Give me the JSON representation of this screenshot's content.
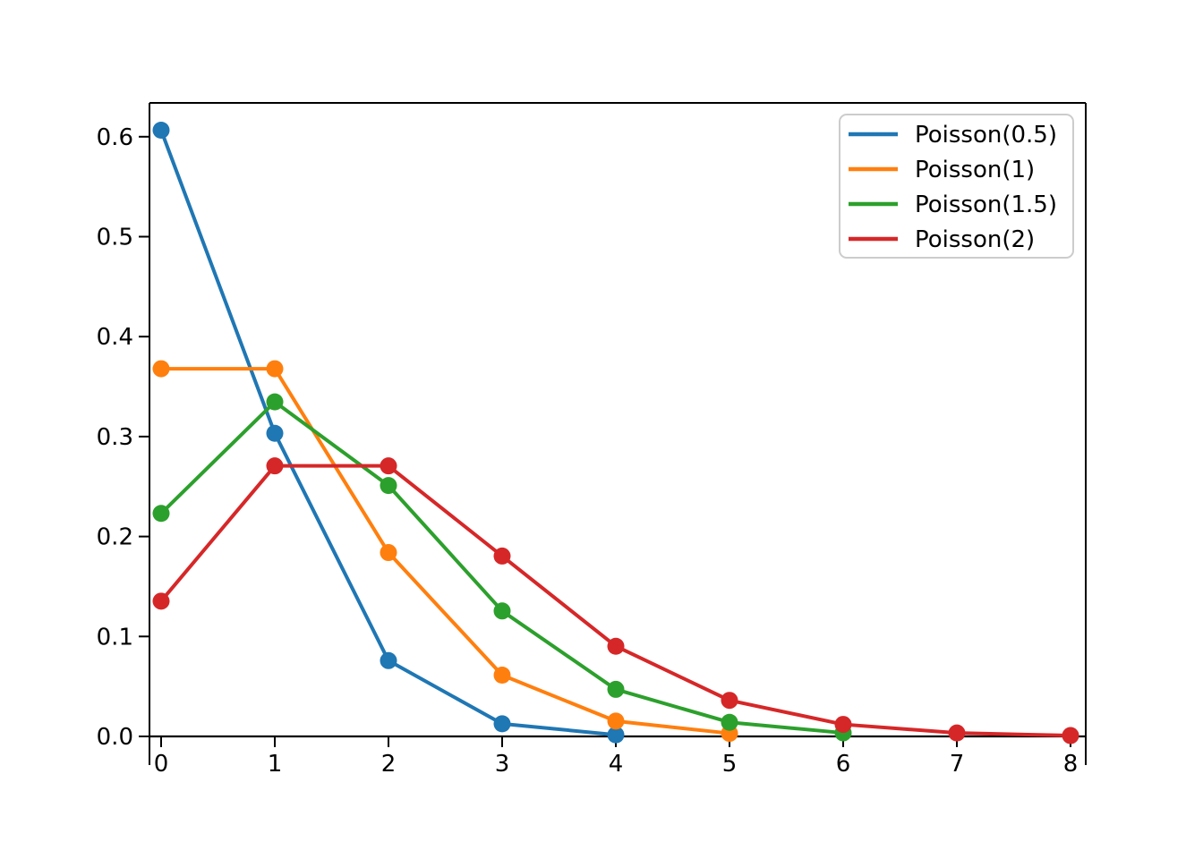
{
  "chart_data": {
    "type": "line",
    "title": "",
    "xlabel": "",
    "ylabel": "",
    "grid": false,
    "marker": "o",
    "legend_position": "upper right",
    "xlim": [
      -0.1,
      8.13
    ],
    "ylim": [
      -0.029,
      0.634
    ],
    "x_ticks": [
      "0",
      "1",
      "2",
      "3",
      "4",
      "5",
      "6",
      "7",
      "8"
    ],
    "y_ticks": [
      "0.0",
      "0.1",
      "0.2",
      "0.3",
      "0.4",
      "0.5",
      "0.6"
    ],
    "series": [
      {
        "name": "Poisson(0.5)",
        "color": "#1f77b4",
        "x": [
          0,
          1,
          2,
          3,
          4
        ],
        "values": [
          0.60653,
          0.30327,
          0.07582,
          0.01264,
          0.00158
        ]
      },
      {
        "name": "Poisson(1)",
        "color": "#ff7f0e",
        "x": [
          0,
          1,
          2,
          3,
          4,
          5
        ],
        "values": [
          0.36788,
          0.36788,
          0.18394,
          0.06131,
          0.01533,
          0.00307
        ]
      },
      {
        "name": "Poisson(1.5)",
        "color": "#2ca02c",
        "x": [
          0,
          1,
          2,
          3,
          4,
          5,
          6
        ],
        "values": [
          0.22313,
          0.3347,
          0.25102,
          0.12551,
          0.04707,
          0.01412,
          0.00353
        ]
      },
      {
        "name": "Poisson(2)",
        "color": "#d62728",
        "x": [
          0,
          1,
          2,
          3,
          4,
          5,
          6,
          7,
          8
        ],
        "values": [
          0.13534,
          0.27067,
          0.27067,
          0.18045,
          0.09022,
          0.03609,
          0.01203,
          0.00344,
          0.00086
        ]
      }
    ],
    "axis_color": "#000000",
    "legend_border_color": "#cccccc",
    "legend_background": "#ffffff"
  }
}
